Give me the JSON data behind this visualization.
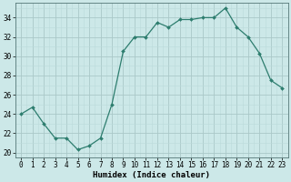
{
  "x": [
    0,
    1,
    2,
    3,
    4,
    5,
    6,
    7,
    8,
    9,
    10,
    11,
    12,
    13,
    14,
    15,
    16,
    17,
    18,
    19,
    20,
    21,
    22,
    23
  ],
  "y": [
    24,
    24.7,
    23,
    21.5,
    21.5,
    20.3,
    20.7,
    21.5,
    25,
    30.5,
    32,
    32,
    33.5,
    33,
    33.8,
    33.8,
    34,
    34,
    35,
    33,
    32,
    30.3,
    27.5,
    26.7
  ],
  "line_color": "#2d7d6e",
  "marker": "D",
  "marker_size": 2.0,
  "bg_color": "#cce8e8",
  "grid_major_color": "#aac8c8",
  "grid_minor_color": "#bbdada",
  "xlabel": "Humidex (Indice chaleur)",
  "xlim": [
    -0.5,
    23.5
  ],
  "ylim": [
    19.5,
    35.5
  ],
  "yticks": [
    20,
    22,
    24,
    26,
    28,
    30,
    32,
    34
  ],
  "xticks": [
    0,
    1,
    2,
    3,
    4,
    5,
    6,
    7,
    8,
    9,
    10,
    11,
    12,
    13,
    14,
    15,
    16,
    17,
    18,
    19,
    20,
    21,
    22,
    23
  ],
  "tick_fontsize": 5.5,
  "xlabel_fontsize": 6.5,
  "linewidth": 0.9
}
